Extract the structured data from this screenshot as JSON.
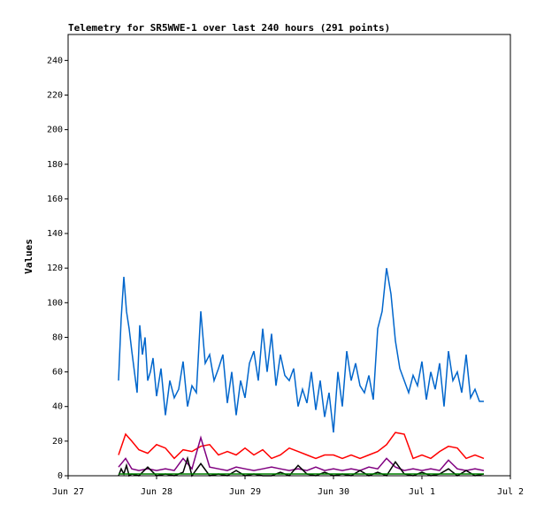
{
  "chart_data": {
    "type": "line",
    "title": "Telemetry for SR5WWE-1 over last 240 hours (291 points)",
    "xlabel": "",
    "ylabel": "Values",
    "ylim": [
      0,
      255
    ],
    "xlim_days": [
      0,
      5
    ],
    "x_tick_labels": [
      "Jun 27",
      "Jun 28",
      "Jun 29",
      "Jun 30",
      "Jul 1",
      "Jul 2"
    ],
    "y_ticks": [
      0,
      20,
      40,
      60,
      80,
      100,
      120,
      140,
      160,
      180,
      200,
      220,
      240
    ],
    "grid": false,
    "legend": "none",
    "series": [
      {
        "color": "#0066cc",
        "x": [
          0.57,
          0.6,
          0.63,
          0.66,
          0.69,
          0.72,
          0.75,
          0.78,
          0.81,
          0.84,
          0.87,
          0.9,
          0.93,
          0.96,
          1.0,
          1.05,
          1.1,
          1.15,
          1.2,
          1.25,
          1.3,
          1.35,
          1.4,
          1.45,
          1.5,
          1.55,
          1.6,
          1.65,
          1.7,
          1.75,
          1.8,
          1.85,
          1.9,
          1.95,
          2.0,
          2.05,
          2.1,
          2.15,
          2.2,
          2.25,
          2.3,
          2.35,
          2.4,
          2.45,
          2.5,
          2.55,
          2.6,
          2.65,
          2.7,
          2.75,
          2.8,
          2.85,
          2.9,
          2.95,
          3.0,
          3.05,
          3.1,
          3.15,
          3.2,
          3.25,
          3.3,
          3.35,
          3.4,
          3.45,
          3.5,
          3.55,
          3.6,
          3.65,
          3.7,
          3.75,
          3.8,
          3.85,
          3.9,
          3.95,
          4.0,
          4.05,
          4.1,
          4.15,
          4.2,
          4.25,
          4.3,
          4.35,
          4.4,
          4.45,
          4.5,
          4.55,
          4.6,
          4.65,
          4.7
        ],
        "values": [
          55,
          91,
          115,
          95,
          85,
          72,
          60,
          48,
          87,
          70,
          80,
          55,
          60,
          68,
          46,
          62,
          35,
          55,
          45,
          50,
          66,
          40,
          52,
          48,
          95,
          65,
          70,
          55,
          62,
          70,
          42,
          60,
          35,
          55,
          45,
          65,
          72,
          55,
          85,
          60,
          82,
          52,
          70,
          58,
          55,
          62,
          40,
          50,
          42,
          60,
          38,
          55,
          34,
          48,
          25,
          60,
          40,
          72,
          55,
          65,
          52,
          48,
          58,
          44,
          85,
          95,
          120,
          105,
          78,
          62,
          55,
          48,
          58,
          52,
          66,
          44,
          60,
          50,
          65,
          40,
          72,
          55,
          60,
          48,
          70,
          45,
          50,
          43,
          43
        ]
      },
      {
        "color": "#ff0000",
        "x": [
          0.57,
          0.65,
          0.72,
          0.8,
          0.9,
          1.0,
          1.1,
          1.2,
          1.3,
          1.4,
          1.5,
          1.6,
          1.7,
          1.8,
          1.9,
          2.0,
          2.1,
          2.2,
          2.3,
          2.4,
          2.5,
          2.6,
          2.7,
          2.8,
          2.9,
          3.0,
          3.1,
          3.2,
          3.3,
          3.4,
          3.5,
          3.6,
          3.7,
          3.8,
          3.9,
          4.0,
          4.1,
          4.2,
          4.3,
          4.4,
          4.5,
          4.6,
          4.7
        ],
        "values": [
          12,
          24,
          20,
          15,
          13,
          18,
          16,
          10,
          15,
          14,
          17,
          18,
          12,
          14,
          12,
          16,
          12,
          15,
          10,
          12,
          16,
          14,
          12,
          10,
          12,
          12,
          10,
          12,
          10,
          12,
          14,
          18,
          25,
          24,
          10,
          12,
          10,
          14,
          17,
          16,
          10,
          12,
          10
        ]
      },
      {
        "color": "#800080",
        "x": [
          0.57,
          0.65,
          0.72,
          0.8,
          0.9,
          1.0,
          1.1,
          1.2,
          1.3,
          1.4,
          1.5,
          1.6,
          1.7,
          1.8,
          1.9,
          2.0,
          2.1,
          2.2,
          2.3,
          2.4,
          2.5,
          2.6,
          2.7,
          2.8,
          2.9,
          3.0,
          3.1,
          3.2,
          3.3,
          3.4,
          3.5,
          3.6,
          3.7,
          3.8,
          3.9,
          4.0,
          4.1,
          4.2,
          4.3,
          4.4,
          4.5,
          4.6,
          4.7
        ],
        "values": [
          5,
          10,
          4,
          3,
          4,
          3,
          4,
          3,
          10,
          4,
          22,
          5,
          4,
          3,
          5,
          4,
          3,
          4,
          5,
          4,
          3,
          4,
          3,
          5,
          3,
          4,
          3,
          4,
          3,
          5,
          4,
          10,
          5,
          3,
          4,
          3,
          4,
          3,
          9,
          4,
          3,
          4,
          3
        ]
      },
      {
        "color": "#000000",
        "x": [
          0.57,
          0.6,
          0.63,
          0.66,
          0.69,
          0.72,
          0.8,
          0.9,
          1.0,
          1.1,
          1.2,
          1.3,
          1.35,
          1.4,
          1.5,
          1.6,
          1.7,
          1.8,
          1.9,
          2.0,
          2.1,
          2.2,
          2.3,
          2.4,
          2.5,
          2.6,
          2.7,
          2.8,
          2.9,
          3.0,
          3.1,
          3.2,
          3.3,
          3.4,
          3.5,
          3.6,
          3.7,
          3.8,
          3.9,
          4.0,
          4.1,
          4.2,
          4.3,
          4.4,
          4.5,
          4.6,
          4.7
        ],
        "values": [
          0,
          4,
          1,
          6,
          0,
          1,
          0,
          5,
          0,
          1,
          0,
          2,
          10,
          0,
          7,
          0,
          1,
          0,
          3,
          0,
          1,
          0,
          0,
          2,
          0,
          6,
          1,
          0,
          2,
          0,
          1,
          0,
          3,
          0,
          2,
          0,
          8,
          1,
          0,
          2,
          0,
          1,
          4,
          0,
          3,
          0,
          1
        ]
      },
      {
        "color": "#008000",
        "x": [
          0.57,
          1.0,
          1.5,
          2.0,
          2.5,
          3.0,
          3.5,
          4.0,
          4.5,
          4.7
        ],
        "values": [
          1,
          1,
          1,
          1,
          1,
          1,
          1,
          1,
          1,
          1
        ]
      }
    ]
  }
}
